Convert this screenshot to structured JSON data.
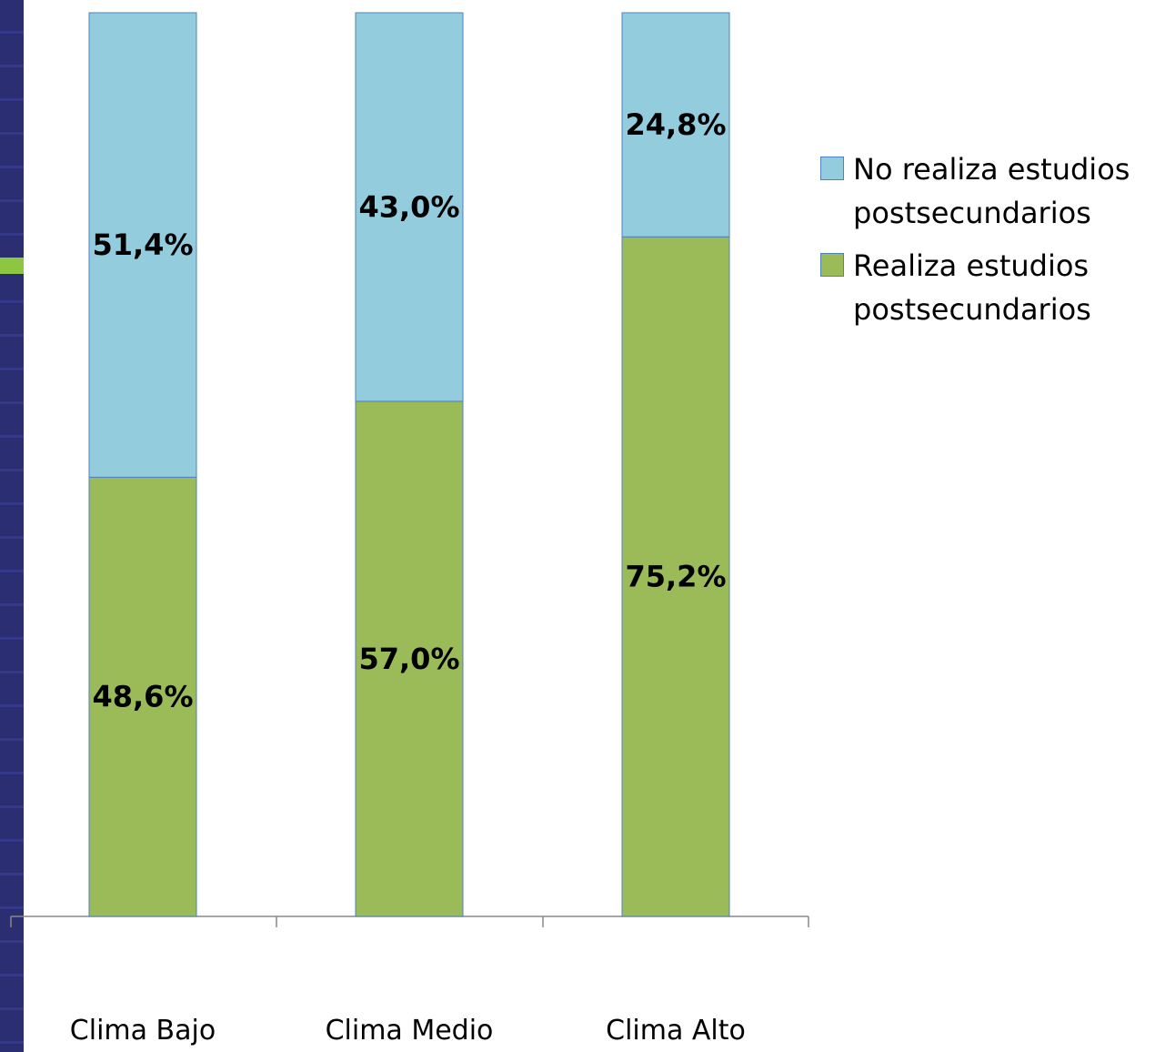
{
  "chart_data": {
    "type": "bar",
    "stacked": true,
    "categories": [
      "Clima Bajo",
      "Clima Medio",
      "Clima Alto"
    ],
    "series": [
      {
        "name": "Realiza estudios postsecundarios",
        "values": [
          48.6,
          57.0,
          75.2
        ],
        "labels": [
          "48,6%",
          "57,0%",
          "75,2%"
        ],
        "color": "#9bbb59"
      },
      {
        "name": "No realiza estudios postsecundarios",
        "values": [
          51.4,
          43.0,
          24.8
        ],
        "labels": [
          "51,4%",
          "43,0%",
          "24,8%"
        ],
        "color": "#93cddd"
      }
    ],
    "ylim": [
      0,
      100
    ],
    "legend_position": "right",
    "legend_order": [
      "No realiza estudios postsecundarios",
      "Realiza estudios postsecundarios"
    ],
    "grid": false
  },
  "colors": {
    "background": "#ffffff",
    "side_strip": "#2b2f72",
    "side_marker": "#8dc63f",
    "bar_border": "#4f81bd"
  }
}
